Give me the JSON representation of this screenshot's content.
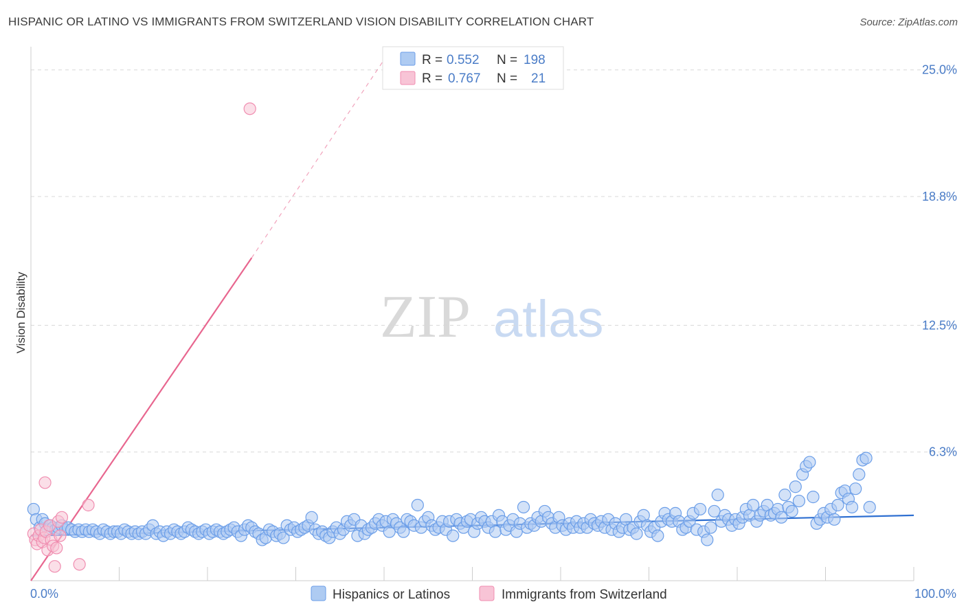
{
  "title": "HISPANIC OR LATINO VS IMMIGRANTS FROM SWITZERLAND VISION DISABILITY CORRELATION CHART",
  "source": "Source: ZipAtlas.com",
  "watermark": {
    "zip": "ZIP",
    "atlas": "atlas"
  },
  "colors": {
    "blue": "#6b9ee8",
    "blue_fill": "#aecbf2",
    "blue_line": "#2e6fd1",
    "pink": "#f08db0",
    "pink_fill": "#f8c4d6",
    "pink_line": "#e8668f",
    "tick_text": "#4a7cc7",
    "grid": "#d8d8d8"
  },
  "legend": {
    "rows": [
      {
        "r_label": "R =",
        "r_value": "0.552",
        "n_label": "N =",
        "n_value": "198",
        "series": "blue"
      },
      {
        "r_label": "R =",
        "r_value": "0.767",
        "n_label": "N =",
        "n_value": "21",
        "series": "pink"
      }
    ]
  },
  "chart_data": {
    "type": "scatter",
    "title": "HISPANIC OR LATINO VS IMMIGRANTS FROM SWITZERLAND VISION DISABILITY CORRELATION CHART",
    "xlabel": "",
    "ylabel": "Vision Disability",
    "xlim": [
      0,
      100
    ],
    "ylim": [
      0,
      26
    ],
    "x_tick_labels": [
      "0.0%",
      "100.0%"
    ],
    "y_ticks": [
      6.3,
      12.5,
      18.8,
      25.0
    ],
    "y_tick_labels": [
      "6.3%",
      "12.5%",
      "18.8%",
      "25.0%"
    ],
    "grid": true,
    "legend_position": "bottom",
    "series": [
      {
        "name": "Hispanics or Latinos",
        "color": "blue",
        "r": 0.552,
        "n": 198,
        "trend": {
          "x0": 0,
          "y0": 2.2,
          "x1": 100,
          "y1": 3.2
        },
        "points": [
          [
            0.3,
            3.5
          ],
          [
            0.6,
            3.0
          ],
          [
            1.0,
            2.6
          ],
          [
            1.3,
            3.0
          ],
          [
            1.6,
            2.8
          ],
          [
            1.9,
            2.5
          ],
          [
            2.2,
            2.7
          ],
          [
            2.5,
            2.6
          ],
          [
            2.8,
            2.5
          ],
          [
            3.1,
            2.6
          ],
          [
            3.5,
            2.7
          ],
          [
            3.9,
            2.5
          ],
          [
            4.2,
            2.6
          ],
          [
            4.6,
            2.5
          ],
          [
            5.0,
            2.4
          ],
          [
            5.4,
            2.5
          ],
          [
            5.8,
            2.4
          ],
          [
            6.2,
            2.5
          ],
          [
            6.6,
            2.4
          ],
          [
            7.0,
            2.5
          ],
          [
            7.4,
            2.4
          ],
          [
            7.8,
            2.3
          ],
          [
            8.2,
            2.5
          ],
          [
            8.6,
            2.4
          ],
          [
            9.0,
            2.3
          ],
          [
            9.4,
            2.4
          ],
          [
            9.8,
            2.4
          ],
          [
            10.2,
            2.3
          ],
          [
            10.6,
            2.5
          ],
          [
            11.0,
            2.4
          ],
          [
            11.4,
            2.3
          ],
          [
            11.8,
            2.4
          ],
          [
            12.2,
            2.3
          ],
          [
            12.6,
            2.4
          ],
          [
            13.0,
            2.3
          ],
          [
            13.4,
            2.5
          ],
          [
            13.8,
            2.7
          ],
          [
            14.2,
            2.3
          ],
          [
            14.6,
            2.4
          ],
          [
            15.0,
            2.2
          ],
          [
            15.4,
            2.4
          ],
          [
            15.8,
            2.3
          ],
          [
            16.2,
            2.5
          ],
          [
            16.6,
            2.4
          ],
          [
            17.0,
            2.3
          ],
          [
            17.4,
            2.4
          ],
          [
            17.8,
            2.6
          ],
          [
            18.2,
            2.5
          ],
          [
            18.6,
            2.4
          ],
          [
            19.0,
            2.3
          ],
          [
            19.4,
            2.4
          ],
          [
            19.8,
            2.5
          ],
          [
            20.2,
            2.3
          ],
          [
            20.6,
            2.4
          ],
          [
            21.0,
            2.5
          ],
          [
            21.4,
            2.4
          ],
          [
            21.8,
            2.3
          ],
          [
            22.2,
            2.4
          ],
          [
            22.6,
            2.5
          ],
          [
            23.0,
            2.6
          ],
          [
            23.4,
            2.4
          ],
          [
            23.8,
            2.2
          ],
          [
            24.2,
            2.5
          ],
          [
            24.6,
            2.7
          ],
          [
            25.0,
            2.6
          ],
          [
            25.4,
            2.4
          ],
          [
            25.8,
            2.3
          ],
          [
            26.2,
            2.0
          ],
          [
            26.6,
            2.1
          ],
          [
            27.0,
            2.5
          ],
          [
            27.4,
            2.4
          ],
          [
            27.8,
            2.2
          ],
          [
            28.2,
            2.3
          ],
          [
            28.6,
            2.1
          ],
          [
            29.0,
            2.7
          ],
          [
            29.4,
            2.5
          ],
          [
            29.8,
            2.6
          ],
          [
            30.2,
            2.4
          ],
          [
            30.6,
            2.5
          ],
          [
            31.0,
            2.6
          ],
          [
            31.4,
            2.7
          ],
          [
            31.8,
            3.1
          ],
          [
            32.2,
            2.5
          ],
          [
            32.6,
            2.3
          ],
          [
            33.0,
            2.4
          ],
          [
            33.4,
            2.2
          ],
          [
            33.8,
            2.1
          ],
          [
            34.2,
            2.4
          ],
          [
            34.6,
            2.6
          ],
          [
            35.0,
            2.3
          ],
          [
            35.4,
            2.5
          ],
          [
            35.8,
            2.9
          ],
          [
            36.2,
            2.7
          ],
          [
            36.6,
            3.0
          ],
          [
            37.0,
            2.2
          ],
          [
            37.4,
            2.7
          ],
          [
            37.8,
            2.3
          ],
          [
            38.2,
            2.5
          ],
          [
            38.6,
            2.6
          ],
          [
            39.0,
            2.8
          ],
          [
            39.4,
            3.0
          ],
          [
            39.8,
            2.7
          ],
          [
            40.2,
            2.9
          ],
          [
            40.6,
            2.4
          ],
          [
            41.0,
            3.0
          ],
          [
            41.4,
            2.8
          ],
          [
            41.8,
            2.6
          ],
          [
            42.2,
            2.4
          ],
          [
            42.6,
            3.0
          ],
          [
            43.0,
            2.9
          ],
          [
            43.4,
            2.7
          ],
          [
            43.8,
            3.7
          ],
          [
            44.2,
            2.6
          ],
          [
            44.6,
            2.9
          ],
          [
            45.0,
            3.1
          ],
          [
            45.4,
            2.7
          ],
          [
            45.8,
            2.5
          ],
          [
            46.2,
            2.6
          ],
          [
            46.6,
            2.9
          ],
          [
            47.0,
            2.5
          ],
          [
            47.4,
            2.9
          ],
          [
            47.8,
            2.2
          ],
          [
            48.2,
            3.0
          ],
          [
            48.6,
            2.8
          ],
          [
            49.0,
            2.6
          ],
          [
            49.4,
            2.9
          ],
          [
            49.8,
            3.0
          ],
          [
            50.2,
            2.4
          ],
          [
            50.6,
            2.8
          ],
          [
            51.0,
            3.1
          ],
          [
            51.4,
            2.9
          ],
          [
            51.8,
            2.6
          ],
          [
            52.2,
            2.9
          ],
          [
            52.6,
            2.4
          ],
          [
            53.0,
            3.2
          ],
          [
            53.4,
            2.9
          ],
          [
            53.8,
            2.5
          ],
          [
            54.2,
            2.7
          ],
          [
            54.6,
            3.0
          ],
          [
            55.0,
            2.4
          ],
          [
            55.4,
            2.8
          ],
          [
            55.8,
            3.6
          ],
          [
            56.2,
            2.6
          ],
          [
            56.6,
            2.8
          ],
          [
            57.0,
            2.7
          ],
          [
            57.4,
            3.1
          ],
          [
            57.8,
            2.9
          ],
          [
            58.2,
            3.4
          ],
          [
            58.6,
            3.1
          ],
          [
            59.0,
            2.8
          ],
          [
            59.4,
            2.6
          ],
          [
            59.8,
            3.1
          ],
          [
            60.2,
            2.7
          ],
          [
            60.6,
            2.5
          ],
          [
            61.0,
            2.8
          ],
          [
            61.4,
            2.6
          ],
          [
            61.8,
            2.9
          ],
          [
            62.2,
            2.6
          ],
          [
            62.6,
            2.8
          ],
          [
            63.0,
            2.6
          ],
          [
            63.4,
            3.0
          ],
          [
            63.8,
            2.8
          ],
          [
            64.2,
            2.7
          ],
          [
            64.6,
            2.9
          ],
          [
            65.0,
            2.6
          ],
          [
            65.4,
            3.0
          ],
          [
            65.8,
            2.5
          ],
          [
            66.2,
            2.8
          ],
          [
            66.6,
            2.4
          ],
          [
            67.0,
            2.6
          ],
          [
            67.4,
            3.0
          ],
          [
            67.8,
            2.5
          ],
          [
            68.2,
            2.6
          ],
          [
            68.6,
            2.3
          ],
          [
            69.0,
            2.9
          ],
          [
            69.4,
            3.2
          ],
          [
            69.8,
            2.7
          ],
          [
            70.2,
            2.4
          ],
          [
            70.6,
            2.6
          ],
          [
            71.0,
            2.2
          ],
          [
            71.4,
            2.9
          ],
          [
            71.8,
            3.3
          ],
          [
            72.2,
            3.0
          ],
          [
            72.6,
            2.9
          ],
          [
            73.0,
            3.3
          ],
          [
            73.4,
            2.9
          ],
          [
            73.8,
            2.5
          ],
          [
            74.2,
            2.6
          ],
          [
            74.6,
            2.9
          ],
          [
            75.0,
            3.3
          ],
          [
            75.4,
            2.5
          ],
          [
            75.8,
            3.5
          ],
          [
            76.2,
            2.4
          ],
          [
            76.6,
            2.0
          ],
          [
            77.0,
            2.6
          ],
          [
            77.4,
            3.4
          ],
          [
            77.8,
            4.2
          ],
          [
            78.2,
            2.9
          ],
          [
            78.6,
            3.2
          ],
          [
            79.0,
            3.0
          ]
        ],
        "extra_points": [
          [
            79.4,
            2.7
          ],
          [
            79.8,
            3.0
          ],
          [
            80.2,
            2.8
          ],
          [
            80.6,
            3.1
          ],
          [
            81.0,
            3.5
          ],
          [
            81.4,
            3.2
          ],
          [
            81.8,
            3.7
          ],
          [
            82.2,
            2.9
          ],
          [
            82.6,
            3.2
          ],
          [
            83.0,
            3.4
          ],
          [
            83.4,
            3.7
          ],
          [
            83.8,
            3.2
          ],
          [
            84.2,
            3.3
          ],
          [
            84.6,
            3.5
          ],
          [
            85.0,
            3.1
          ],
          [
            85.4,
            4.2
          ],
          [
            85.8,
            3.6
          ],
          [
            86.2,
            3.4
          ],
          [
            86.6,
            4.6
          ],
          [
            87.0,
            3.9
          ],
          [
            87.4,
            5.2
          ],
          [
            87.8,
            5.6
          ],
          [
            88.2,
            5.8
          ],
          [
            88.6,
            4.1
          ],
          [
            89.0,
            2.8
          ],
          [
            89.4,
            3.0
          ],
          [
            89.8,
            3.3
          ],
          [
            90.2,
            3.1
          ],
          [
            90.6,
            3.5
          ],
          [
            91.0,
            3.0
          ],
          [
            91.4,
            3.7
          ],
          [
            91.8,
            4.3
          ],
          [
            92.2,
            4.4
          ],
          [
            92.6,
            4.0
          ],
          [
            93.0,
            3.6
          ],
          [
            93.4,
            4.5
          ],
          [
            93.8,
            5.2
          ],
          [
            94.2,
            5.9
          ],
          [
            94.6,
            6.0
          ],
          [
            95.0,
            3.6
          ]
        ]
      },
      {
        "name": "Immigrants from Switzerland",
        "color": "pink",
        "r": 0.767,
        "n": 21,
        "trend": {
          "x0": 0,
          "y0": 0.0,
          "x1": 25,
          "y1": 15.8
        },
        "trend_dashed": {
          "x0": 25,
          "y0": 15.8,
          "x1": 40,
          "y1": 25.5
        },
        "points": [
          [
            0.3,
            2.3
          ],
          [
            0.5,
            2.0
          ],
          [
            0.7,
            1.8
          ],
          [
            0.9,
            2.2
          ],
          [
            1.1,
            2.5
          ],
          [
            1.3,
            1.9
          ],
          [
            1.5,
            2.1
          ],
          [
            1.7,
            2.4
          ],
          [
            1.9,
            1.5
          ],
          [
            2.1,
            2.7
          ],
          [
            2.3,
            2.0
          ],
          [
            2.5,
            1.7
          ],
          [
            2.7,
            0.7
          ],
          [
            2.9,
            1.6
          ],
          [
            3.1,
            2.9
          ],
          [
            3.3,
            2.2
          ],
          [
            3.5,
            3.1
          ],
          [
            1.6,
            4.8
          ],
          [
            5.5,
            0.8
          ],
          [
            6.5,
            3.7
          ],
          [
            24.8,
            23.1
          ]
        ]
      }
    ]
  },
  "bottom_legend": {
    "items": [
      {
        "label": "Hispanics or Latinos",
        "series": "blue"
      },
      {
        "label": "Immigrants from Switzerland",
        "series": "pink"
      }
    ]
  }
}
